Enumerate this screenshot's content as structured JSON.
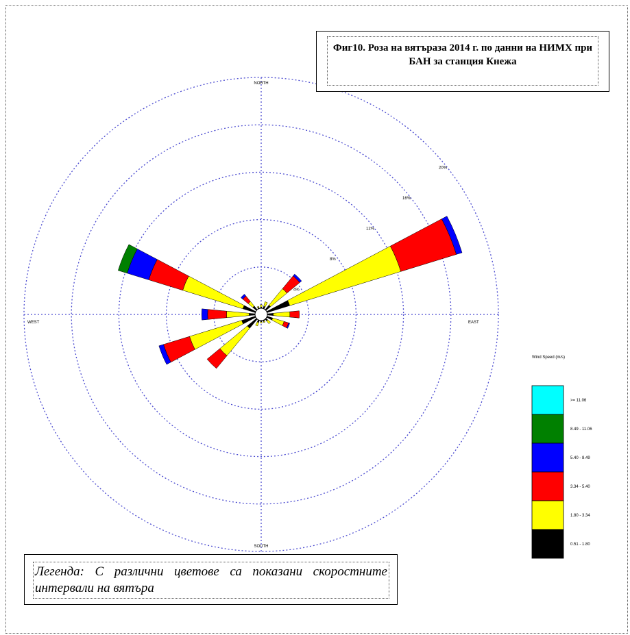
{
  "title": "Фиг10. Роза на вятъраза  2014 г. по данни на НИМХ  при БАН за станция  Кнежа",
  "note": "Легенда: С различни цветове са показани скоростните интервали на вятъра",
  "chart_data": {
    "type": "wind_rose",
    "directions": {
      "north": "NORTH",
      "south": "SOUTH",
      "east": "EAST",
      "west": "WEST"
    },
    "rings": [
      "4%",
      "8%",
      "12%",
      "16%",
      "20%"
    ],
    "ring_values": [
      4,
      8,
      12,
      16,
      20
    ],
    "legend_title": "Wind Speed (m/s)",
    "bins": [
      {
        "label": "0.51 - 1.80",
        "color": "#000000"
      },
      {
        "label": "1.80 - 3.34",
        "color": "#ffff00"
      },
      {
        "label": "3.34 - 5.40",
        "color": "#ff0000"
      },
      {
        "label": "5.40 - 8.49",
        "color": "#0000ff"
      },
      {
        "label": "8.49 - 11.06",
        "color": "#008000"
      },
      {
        "label": ">= 11.06",
        "color": "#00ffff"
      }
    ],
    "sectors": [
      {
        "direction": "N",
        "values": [
          0.1,
          0.2,
          0.0,
          0.0,
          0.0,
          0.0
        ]
      },
      {
        "direction": "NNE",
        "values": [
          0.2,
          0.4,
          0.0,
          0.0,
          0.0,
          0.0
        ]
      },
      {
        "direction": "NE",
        "values": [
          0.5,
          1.8,
          1.4,
          0.2,
          0.0,
          0.0
        ]
      },
      {
        "direction": "ENE",
        "values": [
          2.0,
          9.8,
          4.9,
          0.5,
          0.0,
          0.0
        ]
      },
      {
        "direction": "E",
        "values": [
          0.5,
          1.4,
          0.8,
          0.0,
          0.0,
          0.0
        ]
      },
      {
        "direction": "ESE",
        "values": [
          0.5,
          1.0,
          0.4,
          0.1,
          0.0,
          0.0
        ]
      },
      {
        "direction": "SE",
        "values": [
          0.2,
          0.3,
          0.0,
          0.0,
          0.0,
          0.0
        ]
      },
      {
        "direction": "SSE",
        "values": [
          0.1,
          0.1,
          0.0,
          0.0,
          0.0,
          0.0
        ]
      },
      {
        "direction": "S",
        "values": [
          0.1,
          0.1,
          0.0,
          0.0,
          0.0,
          0.0
        ]
      },
      {
        "direction": "SSW",
        "values": [
          0.2,
          0.3,
          0.0,
          0.0,
          0.0,
          0.0
        ]
      },
      {
        "direction": "SW",
        "values": [
          1.0,
          3.0,
          1.4,
          0.0,
          0.0,
          0.0
        ]
      },
      {
        "direction": "WSW",
        "values": [
          1.2,
          4.6,
          2.3,
          0.4,
          0.0,
          0.0
        ]
      },
      {
        "direction": "W",
        "values": [
          0.5,
          1.9,
          1.6,
          0.5,
          0.0,
          0.0
        ]
      },
      {
        "direction": "WNW",
        "values": [
          1.1,
          5.3,
          3.0,
          1.9,
          0.8,
          0.0
        ]
      },
      {
        "direction": "NW",
        "values": [
          0.4,
          0.5,
          0.6,
          0.2,
          0.0,
          0.0
        ]
      },
      {
        "direction": "NNW",
        "values": [
          0.1,
          0.1,
          0.0,
          0.0,
          0.0,
          0.0
        ]
      }
    ]
  }
}
